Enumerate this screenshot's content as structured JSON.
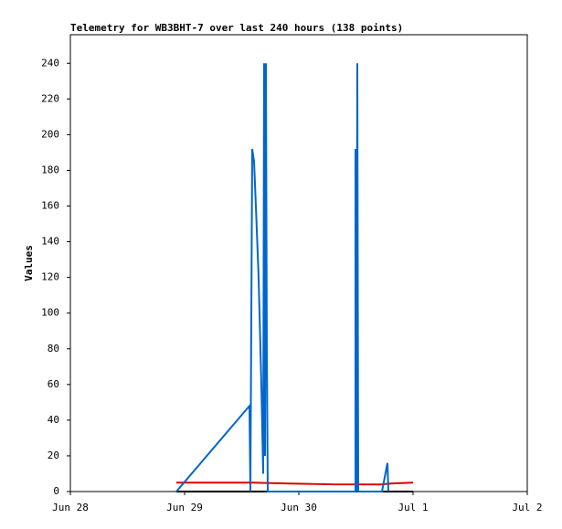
{
  "chart_data": {
    "type": "line",
    "title": "Telemetry for WB3BHT-7 over last 240 hours (138 points)",
    "y_label": "Values",
    "xlim": [
      0,
      4
    ],
    "ylim": [
      0,
      256
    ],
    "xticks": [
      {
        "value": 0,
        "label": "Jun 28"
      },
      {
        "value": 1,
        "label": "Jun 29"
      },
      {
        "value": 2,
        "label": "Jun 30"
      },
      {
        "value": 3,
        "label": "Jul 1"
      },
      {
        "value": 4,
        "label": "Jul 2"
      }
    ],
    "yticks": [
      0,
      20,
      40,
      60,
      80,
      100,
      120,
      140,
      160,
      180,
      200,
      220,
      240
    ],
    "grid": false,
    "series": [
      {
        "color": "#000000",
        "x": [
          0.928,
          3.0
        ],
        "values": [
          0,
          0
        ]
      },
      {
        "color": "#dd0000",
        "x": [
          0.928,
          1.6,
          1.92,
          2.32,
          2.72,
          2.8,
          3.0
        ],
        "values": [
          5,
          5,
          4.5,
          4,
          4,
          4.5,
          5
        ]
      },
      {
        "color": "#0066cc",
        "x": [
          0.928,
          1.568,
          1.576,
          1.592,
          1.608,
          1.624,
          1.648,
          1.672,
          1.688,
          1.696,
          1.704,
          1.712,
          1.72,
          1.728,
          2.496,
          2.496,
          2.504,
          2.512,
          2.52,
          2.728,
          2.776,
          2.784
        ],
        "values": [
          0,
          48,
          0,
          192,
          185,
          160,
          120,
          60,
          10,
          240,
          20,
          240,
          80,
          0,
          0,
          192,
          0,
          240,
          0,
          0,
          16,
          0
        ]
      }
    ]
  }
}
